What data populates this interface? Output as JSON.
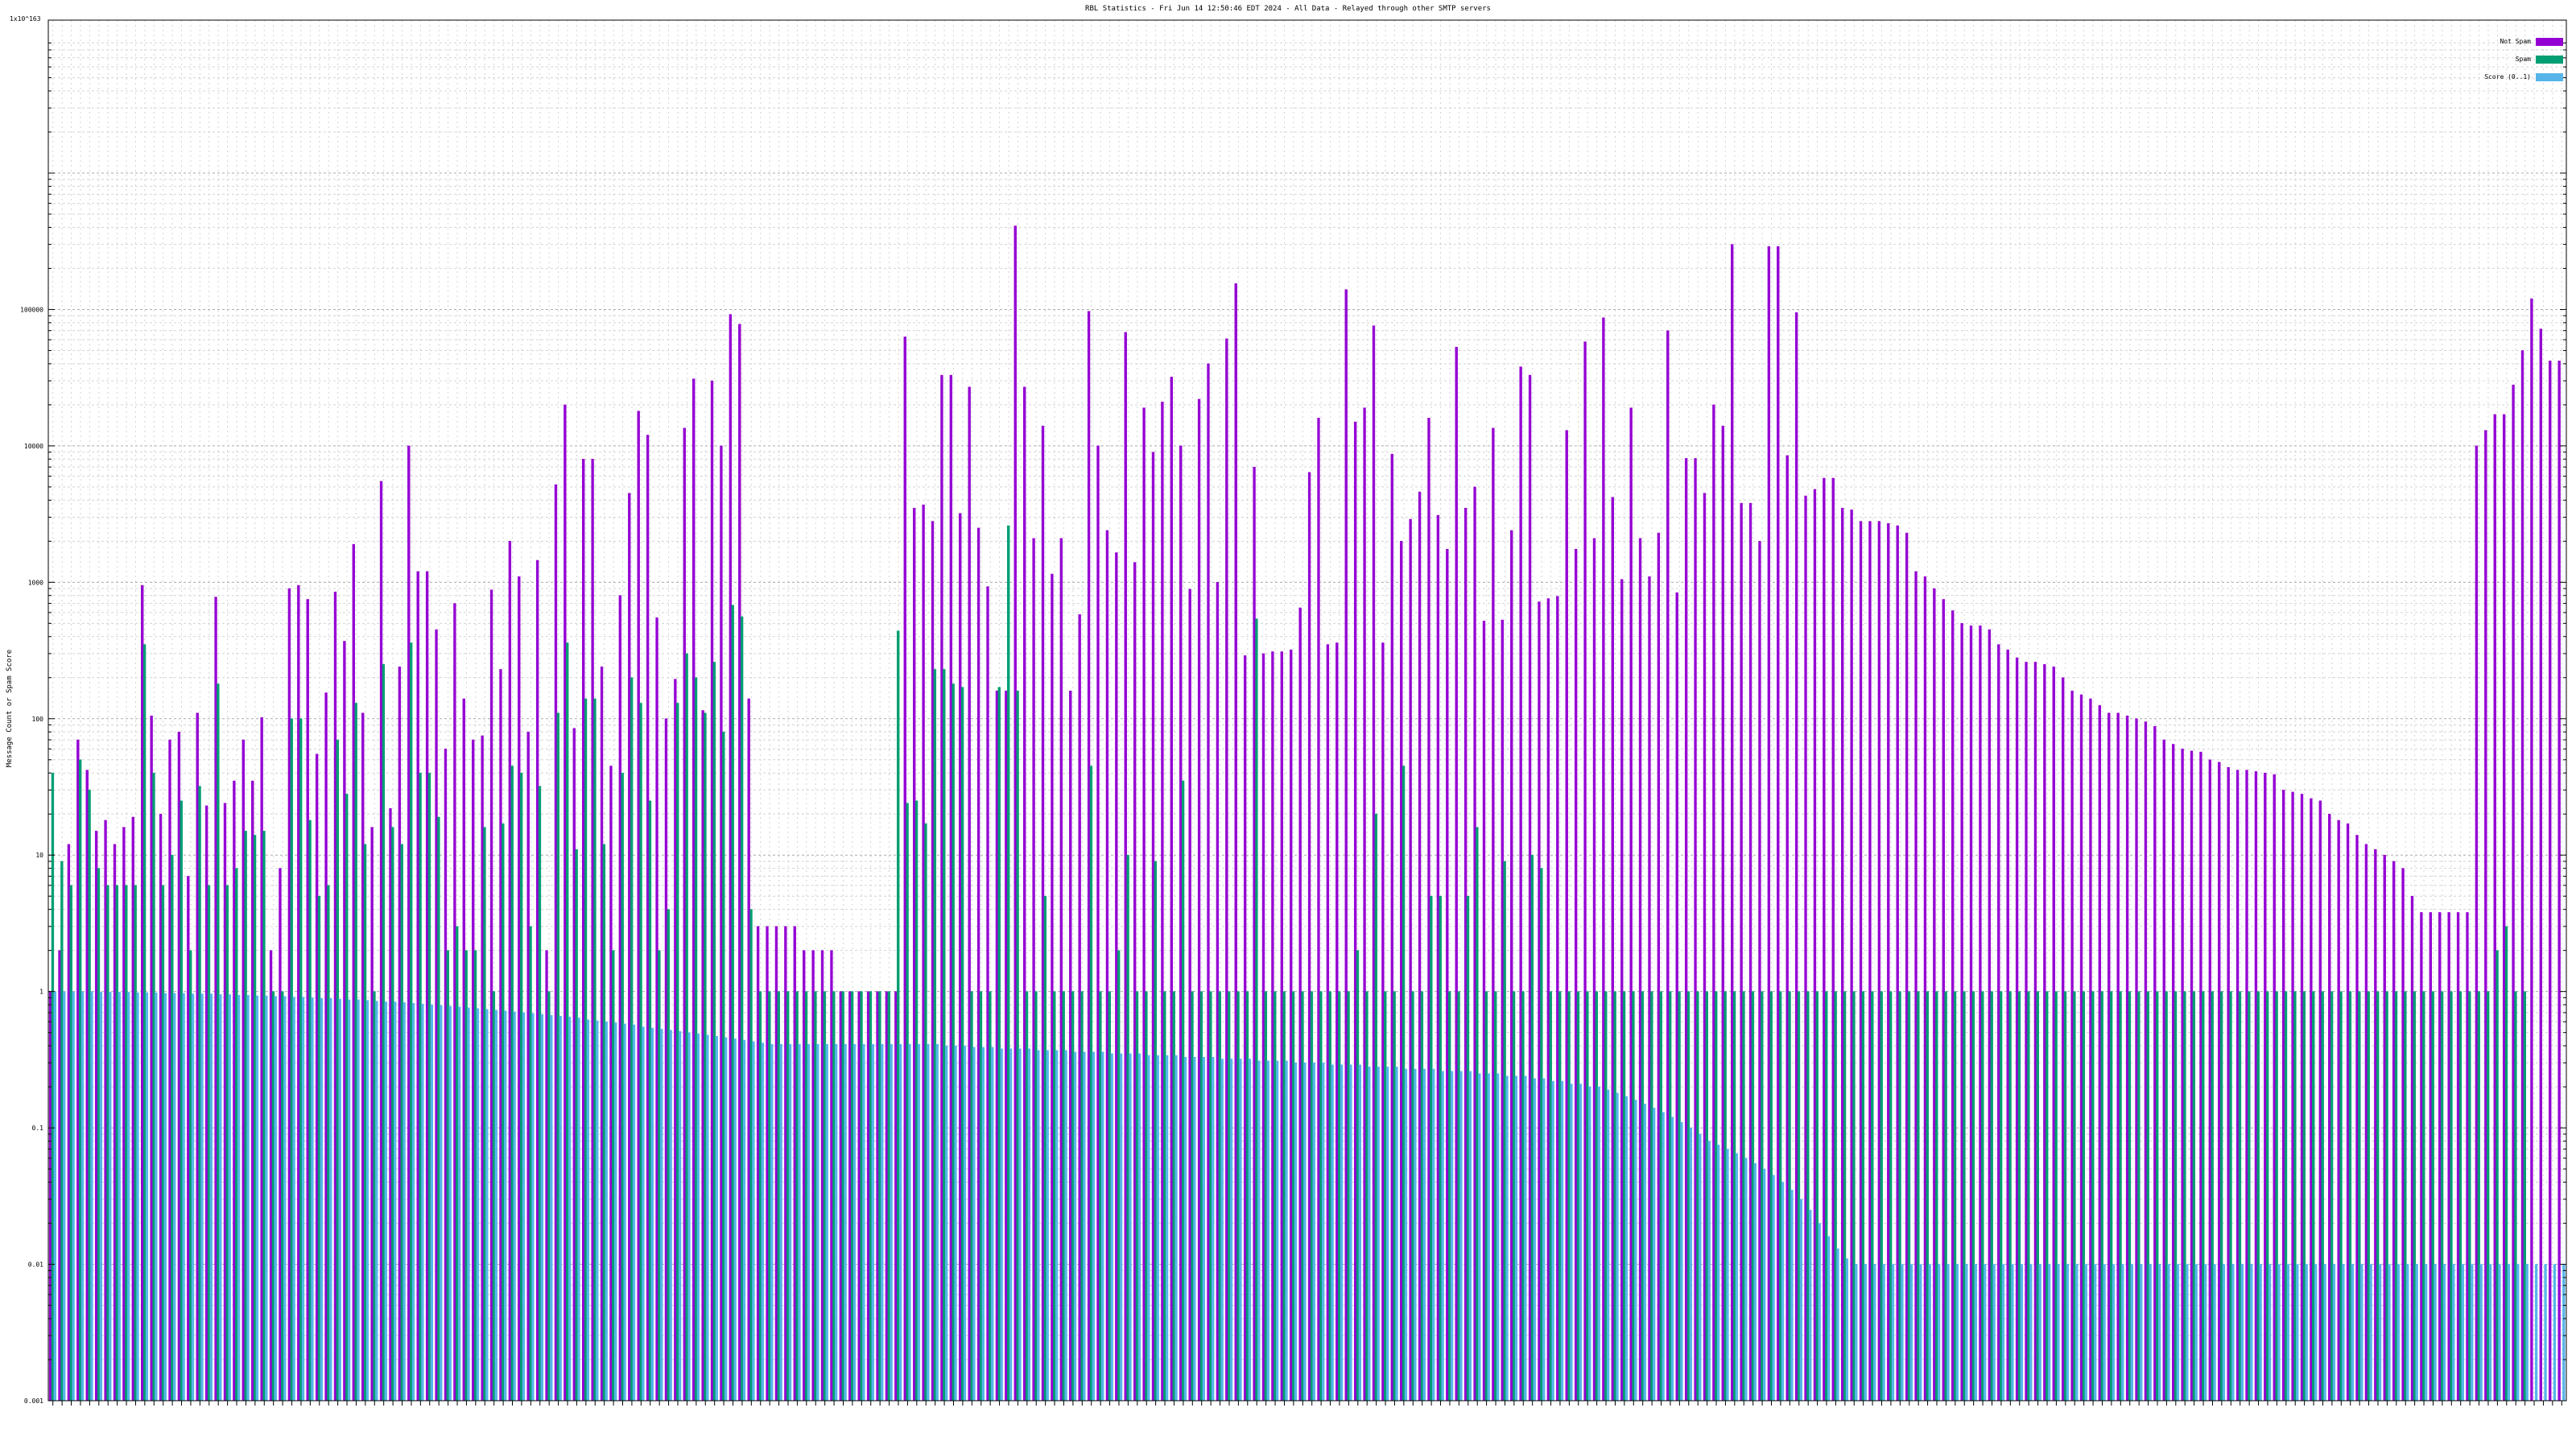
{
  "chart_data": {
    "type": "bar",
    "title": "RBL Statistics - Fri Jun 14 12:50:46 EDT 2024 - All Data - Relayed through other SMTP servers",
    "ylabel": "Message Count or Spam Score",
    "ymax_label": "1x10^163",
    "y_scale": "log",
    "ylim": [
      0.001,
      1000000
    ],
    "y_ticks": [
      {
        "value": 0.001,
        "label": "0.001"
      },
      {
        "value": 0.01,
        "label": "0.01"
      },
      {
        "value": 0.1,
        "label": "0.1"
      },
      {
        "value": 1,
        "label": "1"
      },
      {
        "value": 10,
        "label": "10"
      },
      {
        "value": 100,
        "label": "100"
      },
      {
        "value": 1000,
        "label": "1000"
      },
      {
        "value": 10000,
        "label": "10000"
      },
      {
        "value": 100000,
        "label": "100000"
      }
    ],
    "grid": true,
    "legend_position": "top-right",
    "series": [
      {
        "name": "Not Spam",
        "color": "#9400d3",
        "values": [
          1,
          2,
          12,
          70,
          42,
          15,
          18,
          12,
          16,
          19,
          950,
          105,
          20,
          70,
          80,
          7,
          110,
          23,
          780,
          24,
          35,
          70,
          35,
          102,
          2,
          8,
          900,
          950,
          750,
          55,
          155,
          850,
          370,
          1900,
          110,
          16,
          5500,
          22,
          240,
          10000,
          1200,
          1200,
          450,
          60,
          700,
          140,
          70,
          75,
          880,
          230,
          2000,
          1100,
          80,
          1450,
          2,
          5200,
          20000,
          85,
          8000,
          8000,
          240,
          45,
          800,
          4500,
          18000,
          12000,
          550,
          100,
          195,
          13500,
          31000,
          115,
          30000,
          10000,
          92000,
          78000,
          140,
          3,
          3,
          3,
          3,
          3,
          2,
          2,
          2,
          2,
          1,
          1,
          1,
          1,
          1,
          1,
          1,
          63000,
          3500,
          3700,
          2800,
          33000,
          33000,
          3200,
          27000,
          2500,
          930,
          160,
          160,
          410000,
          27000,
          2100,
          14000,
          1150,
          2100,
          160,
          580,
          97000,
          10000,
          2400,
          1650,
          68000,
          1400,
          19000,
          9000,
          21000,
          32000,
          10000,
          890,
          22000,
          40000,
          1000,
          61000,
          155000,
          290,
          7000,
          300,
          310,
          310,
          320,
          650,
          6400,
          16000,
          350,
          360,
          140000,
          15000,
          19000,
          76000,
          360,
          8700,
          2000,
          2900,
          4600,
          16000,
          3100,
          1750,
          53000,
          3500,
          5000,
          520,
          13500,
          530,
          2400,
          38000,
          33000,
          720,
          760,
          790,
          13000,
          1750,
          58000,
          2100,
          87000,
          4200,
          1050,
          19000,
          2100,
          1100,
          2300,
          70000,
          840,
          8100,
          8100,
          4500,
          20000,
          14000,
          300000,
          3800,
          3800,
          2000,
          290000,
          290000,
          8500,
          95000,
          4300,
          4800,
          5800,
          5800,
          3500,
          3400,
          2800,
          2800,
          2800,
          2700,
          2600,
          2300,
          1200,
          1100,
          900,
          750,
          620,
          500,
          480,
          480,
          450,
          350,
          320,
          280,
          260,
          260,
          250,
          240,
          200,
          160,
          150,
          140,
          125,
          110,
          110,
          105,
          100,
          95,
          88,
          70,
          65,
          60,
          58,
          57,
          50,
          48,
          44,
          42,
          42,
          41,
          40,
          39,
          30,
          29,
          28,
          26,
          25,
          20,
          18,
          17,
          14,
          12,
          11,
          10,
          9,
          8,
          5,
          3.8,
          3.8,
          3.8,
          3.8,
          3.8,
          3.8,
          10000,
          13000,
          17000,
          17000,
          28000,
          50000,
          120000,
          72000,
          42000,
          42000
        ]
      },
      {
        "name": "Spam",
        "color": "#009e73",
        "values": [
          40,
          9,
          6,
          50,
          30,
          8,
          6,
          6,
          6,
          6,
          350,
          40,
          6,
          10,
          25,
          2,
          32,
          6,
          180,
          6,
          8,
          15,
          14,
          15,
          1,
          1,
          100,
          100,
          18,
          5,
          6,
          70,
          28,
          130,
          12,
          1,
          250,
          16,
          12,
          360,
          40,
          40,
          19,
          2,
          3,
          2,
          2,
          16,
          1,
          17,
          45,
          40,
          3,
          32,
          1,
          110,
          360,
          11,
          140,
          140,
          12,
          2,
          40,
          200,
          130,
          25,
          2,
          4,
          130,
          300,
          200,
          110,
          260,
          80,
          680,
          560,
          4,
          1,
          1,
          1,
          1,
          1,
          1,
          1,
          1,
          1,
          1,
          1,
          1,
          1,
          1,
          1,
          440,
          24,
          25,
          17,
          230,
          230,
          180,
          170,
          1,
          1,
          1,
          170,
          2600,
          160,
          1,
          1,
          5,
          1,
          1,
          1,
          1,
          45,
          1,
          1,
          2,
          10,
          1,
          1,
          9,
          1,
          1,
          35,
          1,
          1,
          1,
          1,
          1,
          1,
          1,
          540,
          1,
          1,
          1,
          1,
          1,
          1,
          1,
          1,
          1,
          1,
          2,
          1,
          20,
          1,
          1,
          45,
          1,
          1,
          5,
          5,
          1,
          1,
          5,
          16,
          1,
          1,
          9,
          1,
          1,
          10,
          8,
          1,
          1,
          1,
          1,
          1,
          1,
          1,
          1,
          1,
          1,
          1,
          1,
          1,
          1,
          1,
          1,
          1,
          1,
          1,
          1,
          1,
          1,
          1,
          1,
          1,
          1,
          1,
          1,
          1,
          1,
          1,
          1,
          1,
          1,
          1,
          1,
          1,
          1,
          1,
          1,
          1,
          1,
          1,
          1,
          1,
          1,
          1,
          1,
          1,
          1,
          1,
          1,
          1,
          1,
          1,
          1,
          1,
          1,
          1,
          1,
          1,
          1,
          1,
          1,
          1,
          1,
          1,
          1,
          1,
          1,
          1,
          1,
          1,
          1,
          1,
          1,
          1,
          1,
          1,
          1,
          1,
          1,
          1,
          1,
          1,
          1,
          1,
          1,
          1,
          1,
          1,
          1,
          1,
          1,
          1,
          1,
          1,
          1,
          1,
          1,
          1,
          1,
          1,
          2,
          3,
          1,
          1
        ]
      },
      {
        "name": "Score (0..1)",
        "color": "#56b4e9",
        "values": [
          1,
          1,
          1,
          1,
          1,
          0.99,
          0.99,
          0.99,
          0.99,
          0.98,
          0.98,
          0.98,
          0.97,
          0.97,
          0.97,
          0.96,
          0.96,
          0.96,
          0.95,
          0.95,
          0.94,
          0.94,
          0.93,
          0.93,
          0.92,
          0.92,
          0.91,
          0.91,
          0.9,
          0.89,
          0.89,
          0.88,
          0.87,
          0.87,
          0.86,
          0.85,
          0.84,
          0.84,
          0.83,
          0.82,
          0.81,
          0.8,
          0.79,
          0.78,
          0.77,
          0.76,
          0.75,
          0.74,
          0.73,
          0.72,
          0.71,
          0.7,
          0.69,
          0.68,
          0.67,
          0.66,
          0.65,
          0.64,
          0.62,
          0.61,
          0.6,
          0.59,
          0.58,
          0.57,
          0.55,
          0.54,
          0.53,
          0.52,
          0.51,
          0.5,
          0.49,
          0.48,
          0.47,
          0.46,
          0.45,
          0.44,
          0.43,
          0.42,
          0.41,
          0.41,
          0.41,
          0.41,
          0.41,
          0.41,
          0.41,
          0.41,
          0.41,
          0.41,
          0.41,
          0.41,
          0.41,
          0.41,
          0.41,
          0.41,
          0.41,
          0.41,
          0.41,
          0.4,
          0.4,
          0.4,
          0.39,
          0.39,
          0.39,
          0.38,
          0.38,
          0.38,
          0.38,
          0.37,
          0.37,
          0.37,
          0.37,
          0.36,
          0.36,
          0.36,
          0.36,
          0.35,
          0.35,
          0.35,
          0.35,
          0.34,
          0.34,
          0.34,
          0.34,
          0.33,
          0.33,
          0.33,
          0.33,
          0.32,
          0.32,
          0.32,
          0.32,
          0.31,
          0.31,
          0.31,
          0.31,
          0.3,
          0.3,
          0.3,
          0.3,
          0.29,
          0.29,
          0.29,
          0.29,
          0.28,
          0.28,
          0.28,
          0.28,
          0.27,
          0.27,
          0.27,
          0.27,
          0.26,
          0.26,
          0.26,
          0.26,
          0.25,
          0.25,
          0.25,
          0.24,
          0.24,
          0.24,
          0.23,
          0.23,
          0.22,
          0.22,
          0.21,
          0.21,
          0.2,
          0.2,
          0.19,
          0.18,
          0.17,
          0.16,
          0.15,
          0.14,
          0.13,
          0.12,
          0.11,
          0.1,
          0.09,
          0.08,
          0.075,
          0.07,
          0.065,
          0.06,
          0.055,
          0.05,
          0.045,
          0.04,
          0.035,
          0.03,
          0.025,
          0.02,
          0.016,
          0.013,
          0.011,
          0.01,
          0.01,
          0.01,
          0.01,
          0.01,
          0.01,
          0.01,
          0.01,
          0.01,
          0.01,
          0.01,
          0.01,
          0.01,
          0.01,
          0.01,
          0.01,
          0.01,
          0.01,
          0.01,
          0.01,
          0.01,
          0.01,
          0.01,
          0.01,
          0.01,
          0.01,
          0.01,
          0.01,
          0.01,
          0.01,
          0.01,
          0.01,
          0.01,
          0.01,
          0.01,
          0.01,
          0.01,
          0.01,
          0.01,
          0.01,
          0.01,
          0.01,
          0.01,
          0.01,
          0.01,
          0.01,
          0.01,
          0.01,
          0.01,
          0.01,
          0.01,
          0.01,
          0.01,
          0.01,
          0.01,
          0.01,
          0.01,
          0.01,
          0.01,
          0.01,
          0.01,
          0.01,
          0.01,
          0.01,
          0.01,
          0.01,
          0.01,
          0.01,
          0.01,
          0.01,
          0.01,
          0.01,
          0.01,
          0.01,
          0.01,
          0.01,
          0.01,
          0.01,
          0.01,
          0.01,
          0.01,
          0.01,
          0.01,
          0.01,
          0.01,
          0.01,
          0.01,
          0.01,
          0.01,
          0.01,
          0.01,
          0.01,
          0.01,
          0.01,
          0.01,
          0.01,
          0.005,
          0.005,
          0.003,
          0.002,
          0.002
        ]
      }
    ]
  }
}
